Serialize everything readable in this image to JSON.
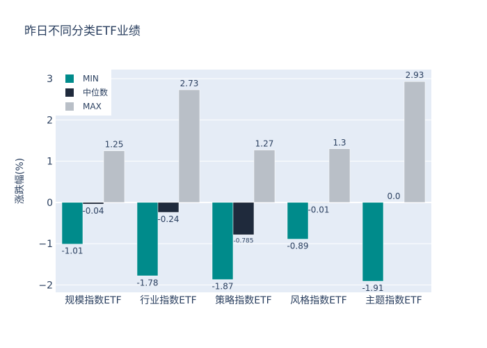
{
  "chart_data": {
    "type": "bar",
    "title": "昨日不同分类ETF业绩",
    "xlabel": "",
    "ylabel": "涨跌幅(%)",
    "categories": [
      "规模指数ETF",
      "行业指数ETF",
      "策略指数ETF",
      "风格指数ETF",
      "主题指数ETF"
    ],
    "series": [
      {
        "name": "MIN",
        "color": "#008b8b",
        "values": [
          -1.01,
          -1.78,
          -1.87,
          -0.89,
          -1.91
        ],
        "labels": [
          "-1.01",
          "-1.78",
          "-1.87",
          "-0.89",
          "-1.91"
        ]
      },
      {
        "name": "中位数",
        "color": "#1f2a3c",
        "values": [
          -0.04,
          -0.24,
          -0.785,
          -0.01,
          0.0
        ],
        "labels": [
          "-0.04",
          "-0.24",
          "-0.785",
          "-0.01",
          "0.0"
        ]
      },
      {
        "name": "MAX",
        "color": "#b9bfc7",
        "values": [
          1.25,
          2.73,
          1.27,
          1.3,
          2.93
        ],
        "labels": [
          "1.25",
          "2.73",
          "1.27",
          "1.3",
          "2.93"
        ]
      }
    ],
    "yticks": [
      -2,
      -1,
      0,
      1,
      2,
      3
    ],
    "ytick_labels": [
      "−2",
      "−1",
      "0",
      "1",
      "2",
      "3"
    ],
    "ylim": [
      -2.18,
      3.22
    ],
    "grid": true,
    "legend_position": "top-left",
    "plot_bg": "#e5ecf6"
  }
}
